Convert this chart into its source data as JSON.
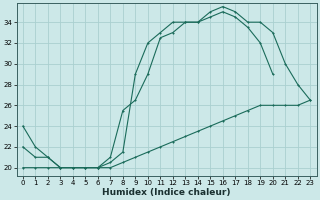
{
  "xlabel": "Humidex (Indice chaleur)",
  "bg_color": "#cce8e8",
  "grid_color": "#aad0d0",
  "line_color": "#1a6b5a",
  "xlim": [
    -0.5,
    23.5
  ],
  "ylim": [
    19.2,
    35.8
  ],
  "xticks": [
    0,
    1,
    2,
    3,
    4,
    5,
    6,
    7,
    8,
    9,
    10,
    11,
    12,
    13,
    14,
    15,
    16,
    17,
    18,
    19,
    20,
    21,
    22,
    23
  ],
  "yticks": [
    20,
    22,
    24,
    26,
    28,
    30,
    32,
    34
  ],
  "line1_x": [
    0,
    1,
    2,
    3,
    4,
    5,
    6,
    7,
    8,
    9,
    10,
    11,
    12,
    13,
    14,
    15,
    16,
    17,
    18,
    19,
    20,
    21,
    22,
    23
  ],
  "line1_y": [
    24,
    22,
    21,
    20,
    20,
    20,
    20,
    20.5,
    21.5,
    29,
    32,
    33,
    34,
    34,
    34,
    35,
    35.5,
    35,
    34,
    34,
    33,
    30,
    28,
    26.5
  ],
  "line2_x": [
    0,
    1,
    2,
    3,
    4,
    5,
    6,
    7,
    8,
    9,
    10,
    11,
    12,
    13,
    14,
    15,
    16,
    17,
    18,
    19,
    20
  ],
  "line2_y": [
    22,
    21,
    21,
    20,
    20,
    20,
    20,
    21,
    25.5,
    26.5,
    29,
    32.5,
    33,
    34,
    34,
    34.5,
    35,
    34.5,
    33.5,
    32,
    29
  ],
  "line3_x": [
    0,
    1,
    2,
    3,
    4,
    5,
    6,
    7,
    8,
    9,
    10,
    11,
    12,
    13,
    14,
    15,
    16,
    17,
    18,
    19,
    20,
    21,
    22,
    23
  ],
  "line3_y": [
    20,
    20,
    20,
    20,
    20,
    20,
    20,
    20,
    20.5,
    21,
    21.5,
    22,
    22.5,
    23,
    23.5,
    24,
    24.5,
    25,
    25.5,
    26,
    26,
    26,
    26,
    26.5
  ]
}
